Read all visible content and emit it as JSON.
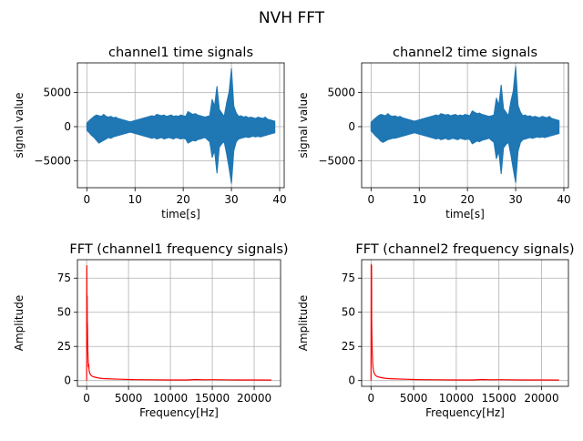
{
  "figure": {
    "title": "NVH FFT"
  },
  "chart_data": [
    {
      "type": "line",
      "title": "channel1 time signals",
      "xlabel": "time[s]",
      "ylabel": "signal value",
      "xlim": [
        -1.95,
        40.95
      ],
      "ylim": [
        -8900,
        9300
      ],
      "xticks": [
        0,
        10,
        20,
        30,
        40
      ],
      "yticks": [
        -5000,
        0,
        5000
      ],
      "xtick_labels": [
        "0",
        "10",
        "20",
        "30",
        "40"
      ],
      "ytick_labels": [
        "−5000",
        "0",
        "5000"
      ],
      "grid": true,
      "color": "#1f77b4",
      "x": [
        0,
        0.5,
        1,
        1.5,
        2,
        2.5,
        3,
        3.5,
        4,
        4.5,
        5,
        5.5,
        6,
        6.5,
        7,
        7.5,
        8,
        8.5,
        9,
        9.5,
        10,
        10.5,
        11,
        11.5,
        12,
        12.5,
        13,
        13.5,
        14,
        14.5,
        15,
        15.5,
        16,
        16.5,
        17,
        17.5,
        18,
        18.5,
        19,
        19.5,
        20,
        20.5,
        21,
        21.5,
        22,
        22.5,
        23,
        23.5,
        24,
        24.5,
        25,
        25.5,
        26,
        26.5,
        27,
        27.5,
        28,
        28.5,
        29,
        29.5,
        30,
        30.5,
        31,
        31.5,
        32,
        32.5,
        33,
        33.5,
        34,
        34.5,
        35,
        35.5,
        36,
        36.5,
        37,
        37.5,
        38,
        38.5,
        39
      ],
      "y_max": [
        500,
        900,
        1200,
        1500,
        1700,
        1600,
        1500,
        1800,
        1500,
        1400,
        1500,
        1300,
        1400,
        1200,
        1100,
        1000,
        900,
        800,
        700,
        800,
        900,
        1000,
        1100,
        1200,
        1300,
        1400,
        1500,
        1600,
        1500,
        1800,
        1700,
        1600,
        1700,
        1500,
        1600,
        1700,
        1500,
        1600,
        1500,
        1700,
        1600,
        1500,
        2200,
        2000,
        1800,
        1900,
        1700,
        1600,
        1500,
        1400,
        1500,
        1600,
        4000,
        3000,
        5900,
        2500,
        2000,
        1500,
        3500,
        5000,
        8500,
        3000,
        2000,
        1500,
        1600,
        1400,
        1500,
        1300,
        1400,
        1300,
        1200,
        1400,
        1300,
        1200,
        1400,
        1100,
        1000,
        900,
        800
      ],
      "y_min": [
        -500,
        -900,
        -1300,
        -1600,
        -2000,
        -2400,
        -2200,
        -2000,
        -1800,
        -1600,
        -1700,
        -1500,
        -1400,
        -1300,
        -1200,
        -1100,
        -1000,
        -900,
        -800,
        -900,
        -1000,
        -1100,
        -1200,
        -1300,
        -1400,
        -1500,
        -1600,
        -1700,
        -1600,
        -1800,
        -1700,
        -1600,
        -1800,
        -1700,
        -1600,
        -1700,
        -1800,
        -1600,
        -1700,
        -1800,
        -1700,
        -1800,
        -2400,
        -2200,
        -2000,
        -2100,
        -1900,
        -1800,
        -1700,
        -1600,
        -1900,
        -2200,
        -4500,
        -3500,
        -6800,
        -3000,
        -2500,
        -2200,
        -4000,
        -6000,
        -8300,
        -3500,
        -2200,
        -1800,
        -1700,
        -1600,
        -1500,
        -1600,
        -1500,
        -1400,
        -1500,
        -1400,
        -1500,
        -1400,
        -1300,
        -1200,
        -1100,
        -1000,
        -900
      ]
    },
    {
      "type": "line",
      "title": "channel2 time signals",
      "xlabel": "time[s]",
      "ylabel": "signal value",
      "xlim": [
        -1.95,
        40.95
      ],
      "ylim": [
        -8900,
        9300
      ],
      "xticks": [
        0,
        10,
        20,
        30,
        40
      ],
      "yticks": [
        -5000,
        0,
        5000
      ],
      "xtick_labels": [
        "0",
        "10",
        "20",
        "30",
        "40"
      ],
      "ytick_labels": [
        "−5000",
        "0",
        "5000"
      ],
      "grid": true,
      "color": "#1f77b4",
      "x": [
        0,
        0.5,
        1,
        1.5,
        2,
        2.5,
        3,
        3.5,
        4,
        4.5,
        5,
        5.5,
        6,
        6.5,
        7,
        7.5,
        8,
        8.5,
        9,
        9.5,
        10,
        10.5,
        11,
        11.5,
        12,
        12.5,
        13,
        13.5,
        14,
        14.5,
        15,
        15.5,
        16,
        16.5,
        17,
        17.5,
        18,
        18.5,
        19,
        19.5,
        20,
        20.5,
        21,
        21.5,
        22,
        22.5,
        23,
        23.5,
        24,
        24.5,
        25,
        25.5,
        26,
        26.5,
        27,
        27.5,
        28,
        28.5,
        29,
        29.5,
        30,
        30.5,
        31,
        31.5,
        32,
        32.5,
        33,
        33.5,
        34,
        34.5,
        35,
        35.5,
        36,
        36.5,
        37,
        37.5,
        38,
        38.5,
        39
      ],
      "y_max": [
        600,
        1000,
        1300,
        1600,
        1800,
        1700,
        1600,
        1900,
        1600,
        1500,
        1600,
        1400,
        1500,
        1300,
        1200,
        1100,
        1000,
        900,
        800,
        900,
        1000,
        1100,
        1200,
        1300,
        1400,
        1500,
        1600,
        1700,
        1600,
        1900,
        1800,
        1700,
        1800,
        1600,
        1700,
        1800,
        1600,
        1700,
        1600,
        1800,
        1700,
        1600,
        2300,
        2100,
        1900,
        2000,
        1800,
        1700,
        1600,
        1500,
        1600,
        1700,
        4200,
        3100,
        6100,
        2600,
        2100,
        1600,
        3700,
        5200,
        8800,
        3100,
        2100,
        1600,
        1700,
        1500,
        1600,
        1400,
        1500,
        1400,
        1300,
        1500,
        1400,
        1300,
        1500,
        1200,
        1100,
        1000,
        900
      ],
      "y_min": [
        -600,
        -1000,
        -1400,
        -1700,
        -2100,
        -2300,
        -2100,
        -1900,
        -1800,
        -1700,
        -1700,
        -1600,
        -1500,
        -1400,
        -1300,
        -1200,
        -1100,
        -1000,
        -900,
        -1000,
        -1100,
        -1200,
        -1300,
        -1400,
        -1500,
        -1600,
        -1700,
        -1800,
        -1700,
        -1900,
        -1800,
        -1700,
        -1900,
        -1800,
        -1700,
        -1800,
        -1900,
        -1700,
        -1800,
        -1900,
        -1800,
        -1900,
        -2500,
        -2300,
        -2100,
        -2200,
        -2000,
        -1900,
        -1800,
        -1700,
        -2000,
        -2300,
        -4700,
        -3600,
        -6900,
        -3100,
        -2600,
        -2300,
        -4100,
        -6200,
        -8200,
        -3600,
        -2300,
        -1900,
        -1800,
        -1700,
        -1600,
        -1700,
        -1600,
        -1500,
        -1600,
        -1500,
        -1600,
        -1500,
        -1400,
        -1300,
        -1200,
        -1100,
        -1000
      ]
    },
    {
      "type": "line",
      "title": "FFT (channel1 frequency signals)",
      "xlabel": "Frequency[Hz]",
      "ylabel": "Amplitude",
      "xlim": [
        -1100,
        23150
      ],
      "ylim": [
        -4.2,
        88.5
      ],
      "xticks": [
        0,
        5000,
        10000,
        15000,
        20000
      ],
      "yticks": [
        0,
        25,
        50,
        75
      ],
      "xtick_labels": [
        "0",
        "5000",
        "10000",
        "15000",
        "20000"
      ],
      "ytick_labels": [
        "0",
        "25",
        "50",
        "75"
      ],
      "grid": true,
      "color": "#ff0000",
      "x": [
        0,
        20,
        40,
        60,
        80,
        100,
        130,
        160,
        200,
        250,
        300,
        400,
        500,
        700,
        1000,
        1500,
        2000,
        3000,
        4000,
        5000,
        6000,
        8000,
        10000,
        12000,
        13000,
        14000,
        15000,
        16000,
        18000,
        20000,
        22050
      ],
      "y": [
        0,
        84,
        40,
        62,
        30,
        42,
        25,
        18,
        10,
        12,
        7,
        5,
        4,
        3,
        2.5,
        1.8,
        1.5,
        1.2,
        1,
        0.8,
        0.7,
        0.6,
        0.5,
        0.5,
        0.8,
        0.6,
        0.7,
        0.6,
        0.5,
        0.5,
        0.4
      ]
    },
    {
      "type": "line",
      "title": "FFT (channel2 frequency signals)",
      "xlabel": "Frequency[Hz]",
      "ylabel": "Amplitude",
      "xlim": [
        -1100,
        23150
      ],
      "ylim": [
        -4.2,
        88.5
      ],
      "xticks": [
        0,
        5000,
        10000,
        15000,
        20000
      ],
      "yticks": [
        0,
        25,
        50,
        75
      ],
      "xtick_labels": [
        "0",
        "5000",
        "10000",
        "15000",
        "20000"
      ],
      "ytick_labels": [
        "0",
        "25",
        "50",
        "75"
      ],
      "grid": true,
      "color": "#ff0000",
      "x": [
        0,
        20,
        40,
        60,
        80,
        100,
        130,
        160,
        200,
        250,
        300,
        400,
        500,
        700,
        1000,
        1500,
        2000,
        3000,
        4000,
        5000,
        6000,
        8000,
        10000,
        12000,
        13000,
        14000,
        15000,
        16000,
        18000,
        20000,
        22050
      ],
      "y": [
        0,
        85,
        60,
        84,
        45,
        35,
        24,
        19,
        12,
        9,
        7,
        5,
        4,
        3,
        2.5,
        1.8,
        1.5,
        1.2,
        1,
        0.8,
        0.7,
        0.6,
        0.5,
        0.5,
        0.8,
        0.6,
        0.7,
        0.6,
        0.5,
        0.5,
        0.4
      ]
    }
  ]
}
